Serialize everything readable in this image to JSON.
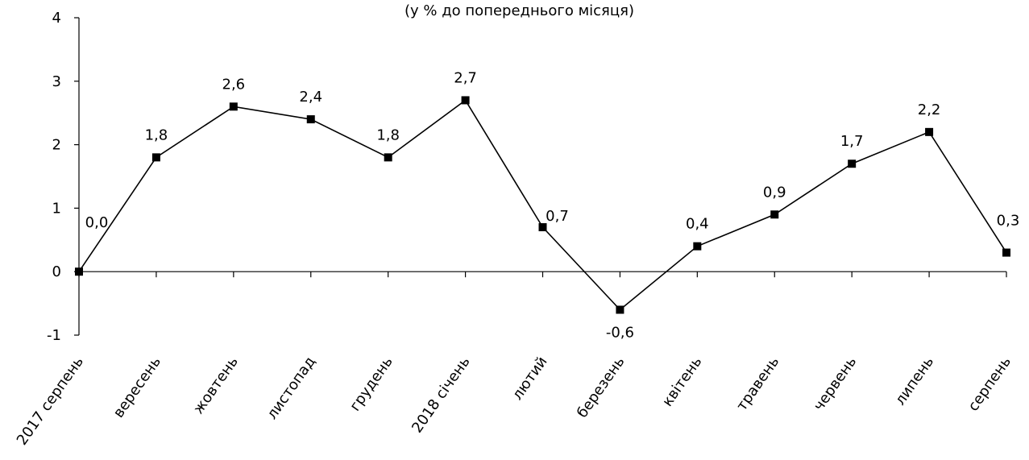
{
  "chart_data": {
    "type": "line",
    "subtitle": "(у % до попереднього місяця)",
    "categories": [
      "2017 серпень",
      "вересень",
      "жовтень",
      "листопад",
      "грудень",
      "2018 січень",
      "лютий",
      "березень",
      "квітень",
      "травень",
      "червень",
      "липень",
      "серпень"
    ],
    "series": [
      {
        "values": [
          0.0,
          1.8,
          2.6,
          2.4,
          1.8,
          2.7,
          0.7,
          -0.6,
          0.4,
          0.9,
          1.7,
          2.2,
          0.3
        ],
        "data_labels": [
          "0,0",
          "1,8",
          "2,6",
          "2,4",
          "1,8",
          "2,7",
          "0,7",
          "-0,6",
          "0,4",
          "0,9",
          "1,7",
          "2,2",
          "0,3"
        ]
      }
    ],
    "ylim": [
      -1,
      4
    ],
    "yticks": [
      -1,
      0,
      1,
      2,
      3,
      4
    ],
    "grid": false,
    "marker": "square",
    "line_color": "#000000"
  }
}
